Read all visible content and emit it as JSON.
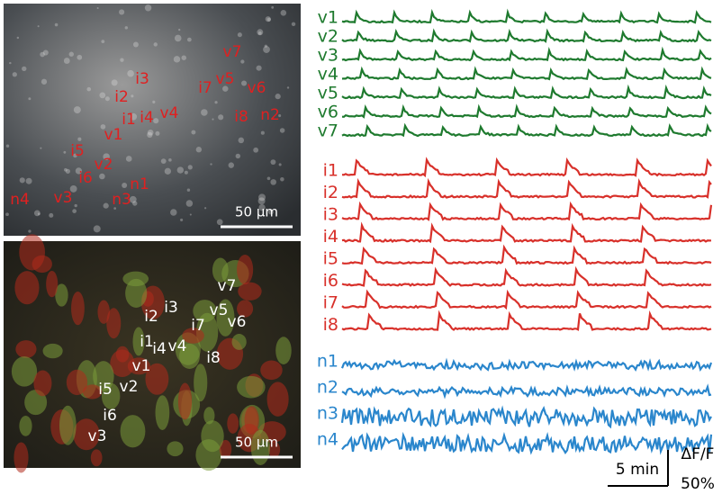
{
  "image_top": {
    "labels": [
      "v7",
      "v5",
      "v6",
      "i7",
      "i3",
      "i2",
      "i8",
      "n2",
      "i1",
      "i4",
      "v4",
      "v1",
      "i5",
      "v2",
      "i6",
      "n1",
      "n4",
      "v3",
      "n3"
    ],
    "scale_bar": "50 µm"
  },
  "image_bottom": {
    "labels": [
      "v7",
      "i3",
      "i2",
      "v5",
      "v6",
      "i7",
      "i1",
      "i4",
      "v4",
      "i8",
      "v1",
      "i5",
      "v2",
      "i6",
      "v3"
    ],
    "scale_bar": "50 µm"
  },
  "traces": {
    "groups": [
      {
        "color": "#1e7a2e",
        "labels": [
          "v1",
          "v2",
          "v3",
          "v4",
          "v5",
          "v6",
          "v7"
        ]
      },
      {
        "color": "#d8302a",
        "labels": [
          "i1",
          "i2",
          "i3",
          "i4",
          "i5",
          "i6",
          "i7",
          "i8"
        ]
      },
      {
        "color": "#2a86cc",
        "labels": [
          "n1",
          "n2",
          "n3",
          "n4"
        ]
      }
    ]
  },
  "scale": {
    "time": "5 min",
    "quantity": "ΔF/F",
    "amount": "50%"
  }
}
